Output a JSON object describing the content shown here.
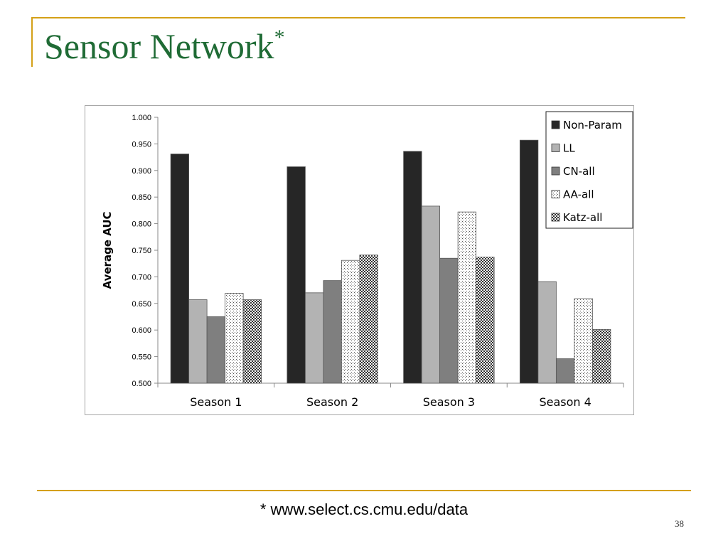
{
  "slide": {
    "title": "Sensor Network",
    "title_mark": "*",
    "footnote": "* www.select.cs.cmu.edu/data",
    "page_number": "38"
  },
  "colors": {
    "accent_rule": "#d4a017",
    "title": "#1f6b35"
  },
  "chart_data": {
    "type": "bar",
    "title": "",
    "xlabel": "",
    "ylabel": "Average AUC",
    "ylim": [
      0.5,
      1.0
    ],
    "ytick_step": 0.05,
    "ytick_labels": [
      "0.500",
      "0.550",
      "0.600",
      "0.650",
      "0.700",
      "0.750",
      "0.800",
      "0.850",
      "0.900",
      "0.950",
      "1.000"
    ],
    "grid": false,
    "legend_position": "top-right",
    "categories": [
      "Season 1",
      "Season 2",
      "Season 3",
      "Season 4"
    ],
    "series": [
      {
        "name": "Non-Param",
        "fill": "solid",
        "color": "#262626",
        "values": [
          0.931,
          0.907,
          0.936,
          0.957
        ]
      },
      {
        "name": "LL",
        "fill": "solid",
        "color": "#b3b3b3",
        "values": [
          0.657,
          0.67,
          0.833,
          0.691
        ]
      },
      {
        "name": "CN-all",
        "fill": "solid",
        "color": "#7f7f7f",
        "values": [
          0.625,
          0.693,
          0.735,
          0.546
        ]
      },
      {
        "name": "AA-all",
        "fill": "dots",
        "color": "#ffffff",
        "values": [
          0.669,
          0.731,
          0.822,
          0.659
        ]
      },
      {
        "name": "Katz-all",
        "fill": "checker",
        "color": "#b0b0b0",
        "values": [
          0.657,
          0.741,
          0.737,
          0.601
        ]
      }
    ]
  }
}
